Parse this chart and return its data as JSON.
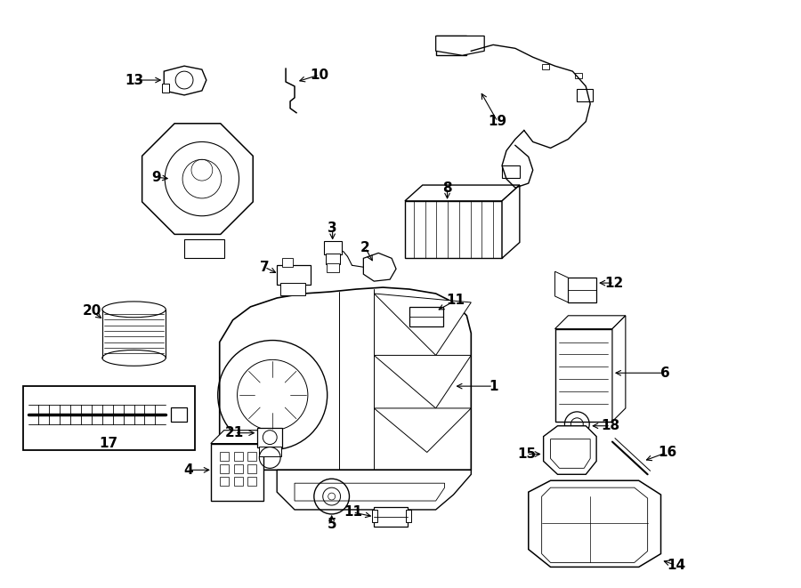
{
  "bg_color": "#ffffff",
  "line_color": "#000000",
  "text_color": "#000000",
  "fig_width": 9.0,
  "fig_height": 6.61,
  "lw": 1.0
}
